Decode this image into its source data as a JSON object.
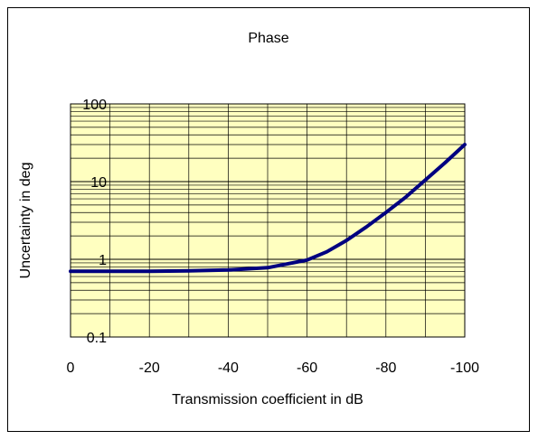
{
  "chart_data": {
    "type": "line",
    "title": "Phase",
    "xlabel": "Transmission coefficient in dB",
    "ylabel": "Uncertainty in deg",
    "x_ticks": [
      "0",
      "-20",
      "-40",
      "-60",
      "-80",
      "-100"
    ],
    "y_ticks": [
      "0.1",
      "1",
      "10",
      "100"
    ],
    "xlim": [
      0,
      -100
    ],
    "ylim": [
      0.1,
      100
    ],
    "y_scale": "log",
    "grid": true,
    "legend": "none",
    "series": [
      {
        "x": [
          0,
          -10,
          -20,
          -30,
          -40,
          -50,
          -60,
          -65,
          -70,
          -75,
          -80,
          -85,
          -90,
          -95,
          -100
        ],
        "values": [
          0.7,
          0.7,
          0.7,
          0.71,
          0.73,
          0.78,
          0.98,
          1.25,
          1.75,
          2.6,
          4.0,
          6.3,
          10.5,
          17.5,
          30
        ]
      }
    ]
  },
  "colors": {
    "plot_bg": "#FFFFC0",
    "line": "#000080",
    "grid": "#000000",
    "frame": "#000000"
  }
}
